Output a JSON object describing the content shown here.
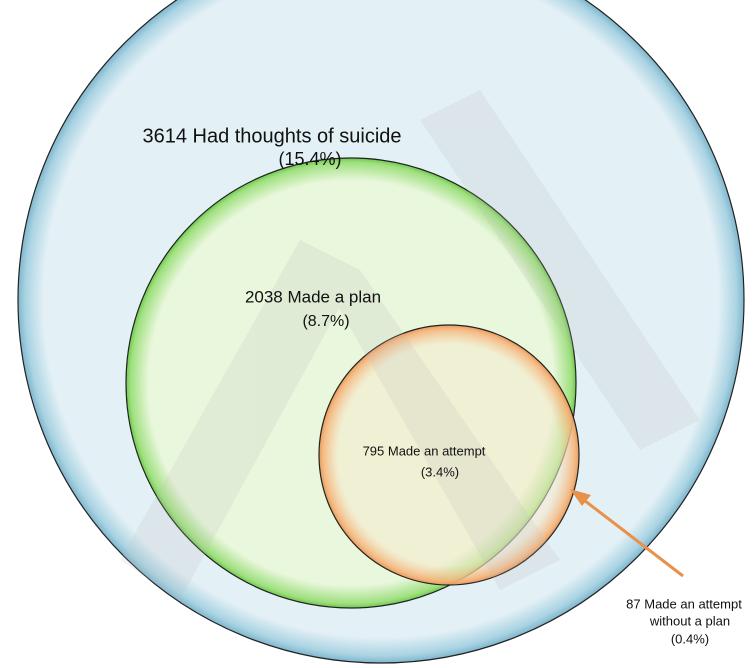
{
  "nodes": [
    {
      "label": "3614 Had thoughts of suicide",
      "percent": "(15.4%)"
    },
    {
      "label": "2038 Made a plan",
      "percent": "(8.7%)"
    },
    {
      "label": "795 Made an attempt",
      "percent": "(3.4%)"
    }
  ],
  "callout": {
    "lines": [
      "87 Made an attempt",
      "without a plan"
    ],
    "percent": "(0.4%)"
  }
}
